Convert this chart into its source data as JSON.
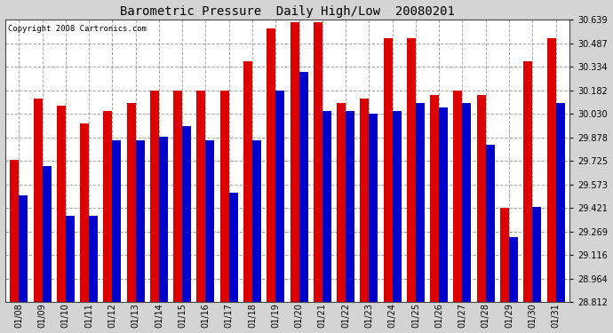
{
  "title": "Barometric Pressure  Daily High/Low  20080201",
  "copyright": "Copyright 2008 Cartronics.com",
  "dates": [
    "01/08",
    "01/09",
    "01/10",
    "01/11",
    "01/12",
    "01/13",
    "01/14",
    "01/15",
    "01/16",
    "01/17",
    "01/18",
    "01/19",
    "01/20",
    "01/21",
    "01/22",
    "01/23",
    "01/24",
    "01/25",
    "01/26",
    "01/27",
    "01/28",
    "01/29",
    "01/30",
    "01/31"
  ],
  "highs": [
    29.73,
    30.13,
    30.08,
    29.97,
    30.05,
    30.1,
    30.18,
    30.18,
    30.18,
    30.18,
    30.37,
    30.58,
    30.62,
    30.62,
    30.1,
    30.13,
    30.52,
    30.52,
    30.15,
    30.18,
    30.15,
    29.42,
    30.37,
    30.52
  ],
  "lows": [
    29.5,
    29.69,
    29.37,
    29.37,
    29.86,
    29.86,
    29.88,
    29.95,
    29.86,
    29.52,
    29.86,
    30.18,
    30.3,
    30.05,
    30.05,
    30.03,
    30.05,
    30.1,
    30.07,
    30.1,
    29.83,
    29.23,
    29.43,
    30.1
  ],
  "ymin": 28.812,
  "ymax": 30.639,
  "yticks": [
    28.812,
    28.964,
    29.116,
    29.269,
    29.421,
    29.573,
    29.725,
    29.878,
    30.03,
    30.182,
    30.334,
    30.487,
    30.639
  ],
  "high_color": "#dd0000",
  "low_color": "#0000cc",
  "bg_color": "#d4d4d4",
  "plot_bg_color": "#ffffff",
  "grid_color": "#aaaaaa",
  "title_fontsize": 10,
  "bar_width": 0.38
}
